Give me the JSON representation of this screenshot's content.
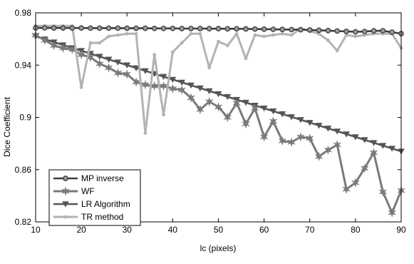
{
  "chart_data": {
    "type": "line",
    "title": "",
    "xlabel": "lc (pixels)",
    "ylabel": "Dice Coefficient",
    "xlim": [
      10,
      90
    ],
    "ylim": [
      0.82,
      0.98
    ],
    "xticks": [
      10,
      20,
      30,
      40,
      50,
      60,
      70,
      80,
      90
    ],
    "xtick_labels": [
      "10",
      "20",
      "30",
      "40",
      "50",
      "60",
      "70",
      "80",
      "90"
    ],
    "yticks": [
      0.82,
      0.86,
      0.9,
      0.94,
      0.98
    ],
    "ytick_labels": [
      "0.82",
      "0.86",
      "0.9",
      "0.94",
      "0.98"
    ],
    "grid": false,
    "legend_position": "bottom-left",
    "x": [
      10,
      12,
      14,
      16,
      18,
      20,
      22,
      24,
      26,
      28,
      30,
      32,
      34,
      36,
      38,
      40,
      42,
      44,
      46,
      48,
      50,
      52,
      54,
      56,
      58,
      60,
      62,
      64,
      66,
      68,
      70,
      72,
      74,
      76,
      78,
      80,
      82,
      84,
      86,
      88,
      90
    ],
    "series": [
      {
        "name": "MP inverse",
        "color": "#3c3c3c",
        "marker": "circle",
        "values": [
          0.9685,
          0.9685,
          0.9684,
          0.9684,
          0.9684,
          0.9684,
          0.9683,
          0.9683,
          0.9683,
          0.9683,
          0.9682,
          0.9682,
          0.9682,
          0.9681,
          0.9681,
          0.9681,
          0.968,
          0.968,
          0.968,
          0.9679,
          0.9679,
          0.9678,
          0.9678,
          0.9677,
          0.9676,
          0.9675,
          0.9674,
          0.9673,
          0.9672,
          0.9671,
          0.9669,
          0.9667,
          0.9664,
          0.9661,
          0.9658,
          0.9655,
          0.9657,
          0.9662,
          0.9663,
          0.9652,
          0.9641
        ]
      },
      {
        "name": "WF",
        "color": "#7a7a7a",
        "marker": "star",
        "values": [
          0.963,
          0.959,
          0.955,
          0.953,
          0.952,
          0.948,
          0.946,
          0.941,
          0.938,
          0.934,
          0.933,
          0.927,
          0.925,
          0.924,
          0.924,
          0.922,
          0.921,
          0.915,
          0.906,
          0.912,
          0.908,
          0.9,
          0.911,
          0.895,
          0.907,
          0.885,
          0.897,
          0.882,
          0.881,
          0.885,
          0.884,
          0.87,
          0.875,
          0.879,
          0.845,
          0.85,
          0.861,
          0.873,
          0.843,
          0.827,
          0.844
        ]
      },
      {
        "name": "LR Algorithm",
        "color": "#555555",
        "marker": "triangle-down",
        "values": [
          0.962,
          0.9598,
          0.9576,
          0.9554,
          0.9532,
          0.951,
          0.9488,
          0.9466,
          0.9444,
          0.9422,
          0.94,
          0.9378,
          0.9356,
          0.9334,
          0.9312,
          0.929,
          0.9268,
          0.9246,
          0.9224,
          0.9202,
          0.918,
          0.9158,
          0.9136,
          0.9114,
          0.9092,
          0.907,
          0.9048,
          0.9026,
          0.9004,
          0.8982,
          0.896,
          0.8938,
          0.8916,
          0.8894,
          0.8872,
          0.885,
          0.8828,
          0.8806,
          0.8784,
          0.8762,
          0.874
        ]
      },
      {
        "name": "TR method",
        "color": "#b3b3b3",
        "marker": "dot",
        "values": [
          0.97,
          0.97,
          0.97,
          0.97,
          0.97,
          0.923,
          0.957,
          0.957,
          0.962,
          0.963,
          0.964,
          0.964,
          0.888,
          0.948,
          0.902,
          0.95,
          0.957,
          0.964,
          0.964,
          0.938,
          0.958,
          0.955,
          0.964,
          0.945,
          0.963,
          0.962,
          0.963,
          0.964,
          0.963,
          0.968,
          0.966,
          0.964,
          0.959,
          0.951,
          0.963,
          0.962,
          0.963,
          0.964,
          0.964,
          0.964,
          0.953
        ]
      }
    ]
  }
}
